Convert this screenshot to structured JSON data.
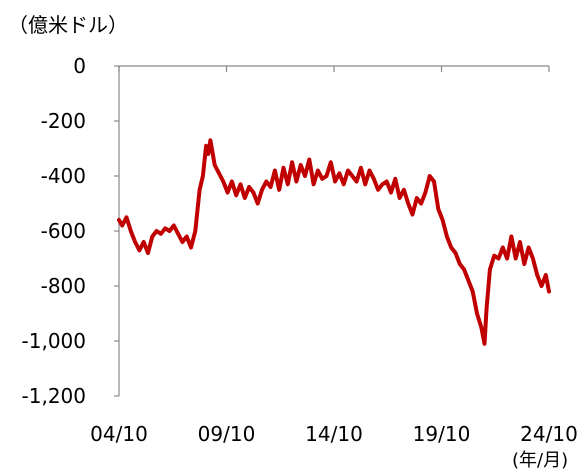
{
  "chart_data": {
    "type": "line",
    "unit_label": "（億米ドル）",
    "x_unit_label": "(年/月)",
    "xlabel": "",
    "ylabel": "",
    "ylim": [
      -1200,
      0
    ],
    "y_ticks": [
      0,
      -200,
      -400,
      -600,
      -800,
      -1000,
      -1200
    ],
    "y_tick_labels": [
      "0",
      "-200",
      "-400",
      "-600",
      "-800",
      "-1,000",
      "-1,200"
    ],
    "x_range": [
      2004.75,
      2024.75
    ],
    "x_ticks": [
      2004.75,
      2009.75,
      2014.75,
      2019.75,
      2024.75
    ],
    "x_tick_labels": [
      "04/10",
      "09/10",
      "14/10",
      "19/10",
      "24/10"
    ],
    "line_color": "#c00000",
    "grid": false,
    "series": [
      {
        "x": [
          2004.75,
          2004.9,
          2005.1,
          2005.3,
          2005.5,
          2005.7,
          2005.9,
          2006.1,
          2006.3,
          2006.5,
          2006.7,
          2006.9,
          2007.1,
          2007.3,
          2007.5,
          2007.7,
          2007.9,
          2008.1,
          2008.3,
          2008.5,
          2008.65,
          2008.8,
          2008.9,
          2009.0,
          2009.2,
          2009.4,
          2009.6,
          2009.8,
          2010.0,
          2010.2,
          2010.4,
          2010.6,
          2010.8,
          2011.0,
          2011.2,
          2011.4,
          2011.6,
          2011.8,
          2012.0,
          2012.2,
          2012.4,
          2012.6,
          2012.8,
          2013.0,
          2013.2,
          2013.4,
          2013.6,
          2013.8,
          2014.0,
          2014.2,
          2014.4,
          2014.6,
          2014.8,
          2015.0,
          2015.2,
          2015.4,
          2015.6,
          2015.8,
          2016.0,
          2016.2,
          2016.4,
          2016.6,
          2016.8,
          2017.0,
          2017.2,
          2017.4,
          2017.6,
          2017.8,
          2018.0,
          2018.2,
          2018.4,
          2018.6,
          2018.8,
          2019.0,
          2019.2,
          2019.4,
          2019.6,
          2019.8,
          2020.0,
          2020.2,
          2020.4,
          2020.6,
          2020.8,
          2021.0,
          2021.2,
          2021.4,
          2021.6,
          2021.75,
          2021.85,
          2022.0,
          2022.2,
          2022.4,
          2022.6,
          2022.8,
          2023.0,
          2023.2,
          2023.4,
          2023.6,
          2023.8,
          2024.0,
          2024.2,
          2024.4,
          2024.6,
          2024.75
        ],
        "y": [
          -560,
          -580,
          -550,
          -600,
          -640,
          -670,
          -640,
          -680,
          -620,
          -600,
          -610,
          -590,
          -600,
          -580,
          -610,
          -640,
          -620,
          -660,
          -600,
          -450,
          -400,
          -290,
          -320,
          -270,
          -360,
          -390,
          -420,
          -460,
          -420,
          -470,
          -430,
          -480,
          -440,
          -460,
          -500,
          -450,
          -420,
          -440,
          -380,
          -450,
          -370,
          -430,
          -350,
          -420,
          -360,
          -400,
          -340,
          -430,
          -380,
          -410,
          -400,
          -350,
          -420,
          -390,
          -430,
          -380,
          -400,
          -420,
          -370,
          -430,
          -380,
          -410,
          -450,
          -430,
          -420,
          -460,
          -410,
          -480,
          -450,
          -500,
          -540,
          -480,
          -500,
          -460,
          -400,
          -420,
          -520,
          -560,
          -620,
          -660,
          -680,
          -720,
          -740,
          -780,
          -820,
          -900,
          -950,
          -1010,
          -880,
          -740,
          -690,
          -700,
          -660,
          -700,
          -620,
          -700,
          -640,
          -720,
          -660,
          -700,
          -760,
          -800,
          -760,
          -820
        ]
      }
    ]
  }
}
